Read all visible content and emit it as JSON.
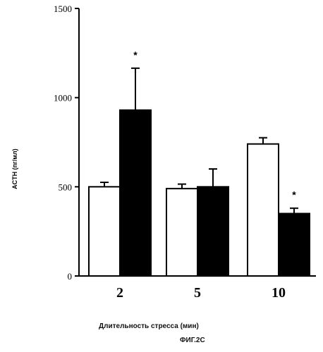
{
  "chart_data": {
    "type": "bar",
    "categories": [
      "2",
      "5",
      "10"
    ],
    "series": [
      {
        "fill": "white",
        "values": [
          500,
          490,
          740
        ],
        "errors": [
          25,
          25,
          35
        ]
      },
      {
        "fill": "black",
        "values": [
          930,
          500,
          350
        ],
        "errors": [
          235,
          100,
          30
        ]
      }
    ],
    "significance_marks": [
      {
        "category": "2",
        "series": 1,
        "text": "*"
      },
      {
        "category": "10",
        "series": 1,
        "text": "*"
      }
    ],
    "ylim": [
      0,
      1500
    ],
    "yticks": [
      0,
      500,
      1000,
      1500
    ],
    "ylabel": "ACTH (пг/мл)",
    "xlabel": "Длительность стресса (мин)",
    "grid": false,
    "legend": "none"
  },
  "caption": "ФИГ.2С",
  "colors": {
    "ink": "#000000",
    "paper": "#ffffff"
  }
}
